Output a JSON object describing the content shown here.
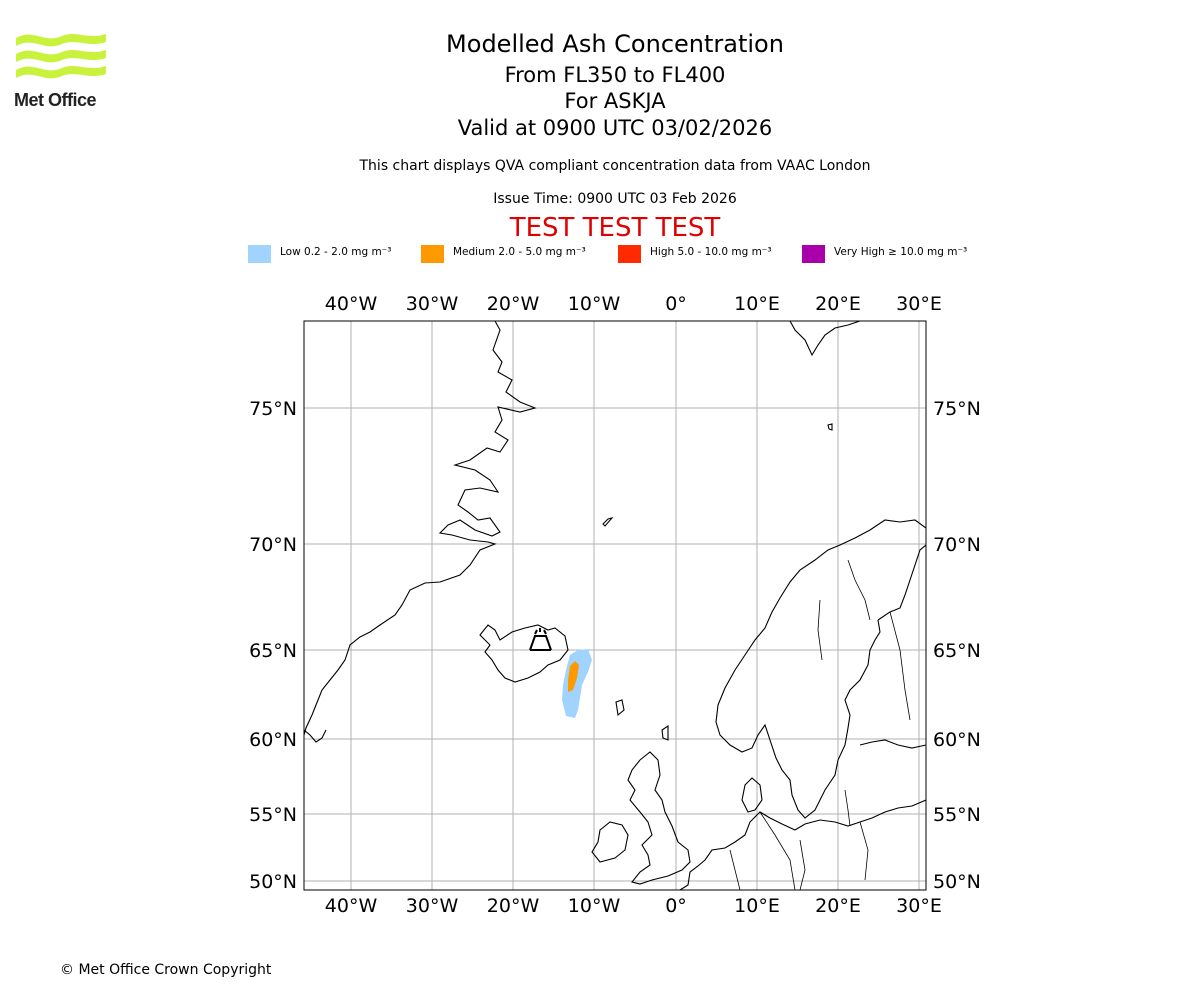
{
  "logo": {
    "text": "Met Office",
    "color": "#c8f23c"
  },
  "header": {
    "title": "Modelled Ash Concentration",
    "level_range": "From FL350 to FL400",
    "volcano_line": "For ASKJA",
    "valid_time": "Valid at 0900 UTC 03/02/2026",
    "description": "This chart displays QVA compliant concentration data from VAAC London",
    "issue_time": "Issue Time: 0900 UTC 03 Feb 2026",
    "test_banner": "TEST TEST TEST"
  },
  "legend": [
    {
      "label": "Low 0.2 - 2.0 mg m⁻³",
      "color": "#a0d4ff"
    },
    {
      "label": "Medium 2.0 - 5.0 mg m⁻³",
      "color": "#ff9900"
    },
    {
      "label": "High 5.0 - 10.0 mg m⁻³",
      "color": "#ff2a00"
    },
    {
      "label": "Very High  ≥  10.0 mg m⁻³",
      "color": "#aa00aa"
    }
  ],
  "map": {
    "lon_ticks": [
      "40°W",
      "30°W",
      "20°W",
      "10°W",
      "0°",
      "10°E",
      "20°E",
      "30°E"
    ],
    "lat_ticks": [
      "75°N",
      "70°N",
      "65°N",
      "60°N",
      "55°N",
      "50°N"
    ],
    "lon_values": [
      -40,
      -30,
      -20,
      -10,
      0,
      10,
      20,
      30
    ],
    "lat_values": [
      75,
      70,
      65,
      60,
      55,
      50
    ],
    "volcano": {
      "name": "ASKJA",
      "lon": -16.75,
      "lat": 65.03
    }
  },
  "footer": {
    "copyright": "© Met Office Crown Copyright"
  }
}
